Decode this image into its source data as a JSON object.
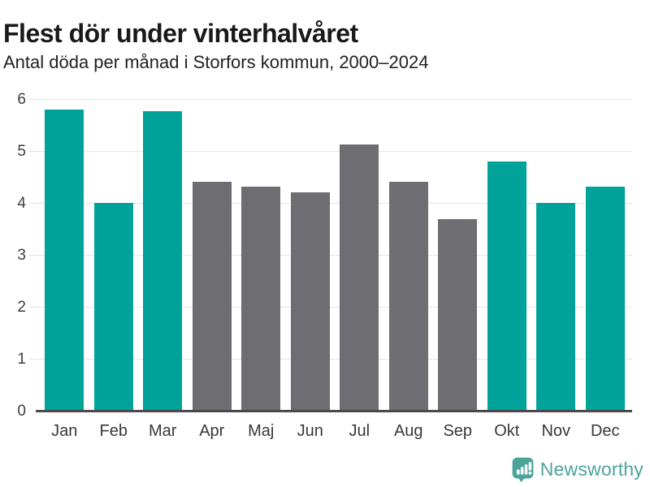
{
  "header": {
    "title": "Flest dör under vinterhalvåret",
    "subtitle": "Antal döda per månad i Storfors kommun, 2000–2024"
  },
  "chart_data": {
    "type": "bar",
    "title": "Flest dör under vinterhalvåret",
    "subtitle": "Antal döda per månad i Storfors kommun, 2000–2024",
    "categories": [
      "Jan",
      "Feb",
      "Mar",
      "Apr",
      "Maj",
      "Jun",
      "Jul",
      "Aug",
      "Sep",
      "Okt",
      "Nov",
      "Dec"
    ],
    "values": [
      5.8,
      4.0,
      5.76,
      4.4,
      4.32,
      4.2,
      5.12,
      4.4,
      3.68,
      4.8,
      4.0,
      4.32
    ],
    "highlighted": [
      true,
      true,
      true,
      false,
      false,
      false,
      false,
      false,
      false,
      true,
      true,
      true
    ],
    "colors": {
      "highlighted": "#00a29a",
      "default": "#6d6d72",
      "gridline": "#e6e6e6",
      "axis_line": "#4a4a4a",
      "axis_text": "#3d3d3d"
    },
    "xlabel": "",
    "ylabel": "",
    "ylim": [
      0,
      6
    ],
    "yticks": [
      0,
      1,
      2,
      3,
      4,
      5,
      6
    ],
    "grid": true,
    "legend": "none"
  },
  "footer": {
    "brand": "Newsworthy",
    "brand_color": "#4ba49a",
    "logo_icon": "bar-chart-speech-bubble-icon"
  }
}
